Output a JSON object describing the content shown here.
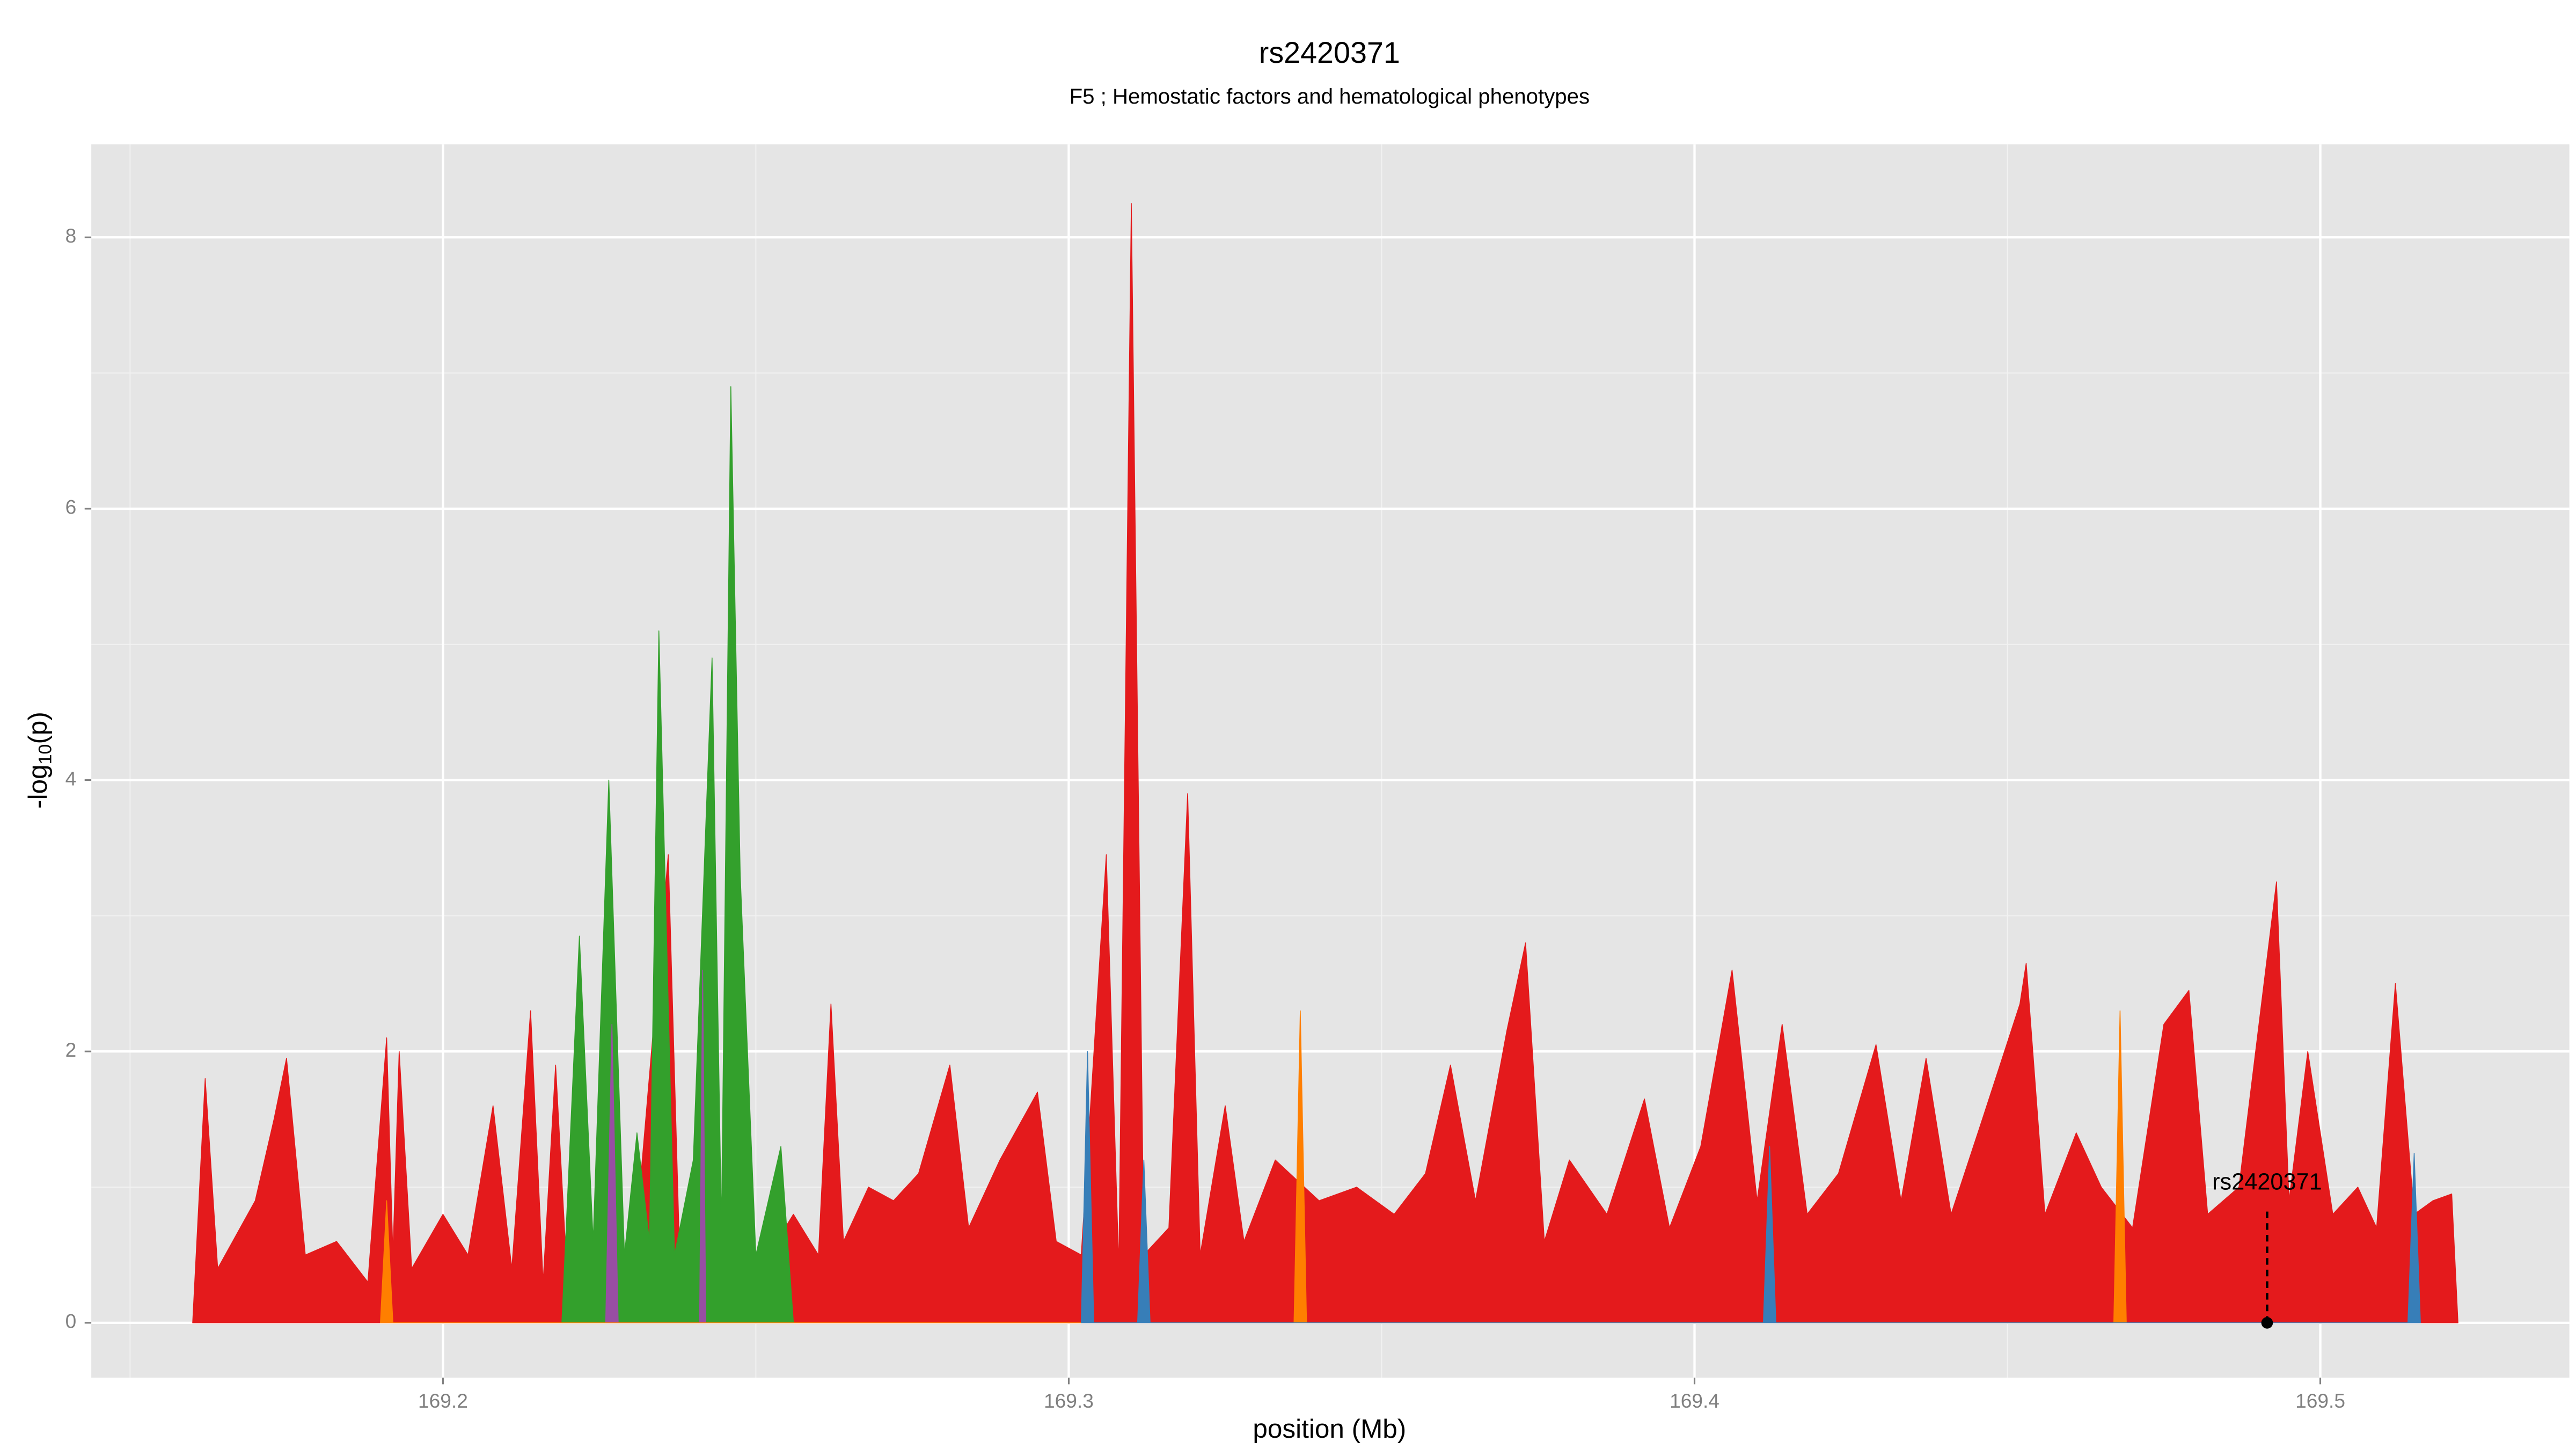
{
  "chart_data": {
    "type": "area",
    "title": "rs2420371",
    "subtitle": "F5 ; Hemostatic factors and hematological phenotypes",
    "xlabel": "position (Mb)",
    "ylabel_parts": [
      "-log",
      "10",
      "(p)"
    ],
    "xlim": [
      169.1438,
      169.5398
    ],
    "ylim": [
      -0.404,
      8.685
    ],
    "xticks": [
      169.2,
      169.3,
      169.4,
      169.5
    ],
    "yticks": [
      0,
      2,
      4,
      6,
      8
    ],
    "xminor": [
      169.15,
      169.25,
      169.35,
      169.45
    ],
    "yminor": [
      1,
      3,
      5,
      7
    ],
    "grid": true,
    "series": [
      {
        "color": "#e41a1c",
        "x": [
          169.16,
          169.162,
          169.164,
          169.17,
          169.173,
          169.175,
          169.178,
          169.183,
          169.188,
          169.191,
          169.192,
          169.193,
          169.195,
          169.2,
          169.204,
          169.208,
          169.211,
          169.214,
          169.216,
          169.218,
          169.22,
          169.226,
          169.23,
          169.236,
          169.238,
          169.245,
          169.252,
          169.256,
          169.26,
          169.262,
          169.264,
          169.268,
          169.272,
          169.276,
          169.281,
          169.284,
          169.289,
          169.295,
          169.298,
          169.302,
          169.306,
          169.308,
          169.31,
          169.312,
          169.316,
          169.319,
          169.321,
          169.325,
          169.328,
          169.333,
          169.34,
          169.346,
          169.352,
          169.357,
          169.361,
          169.365,
          169.37,
          169.373,
          169.376,
          169.38,
          169.386,
          169.392,
          169.396,
          169.401,
          169.406,
          169.41,
          169.414,
          169.418,
          169.423,
          169.429,
          169.433,
          169.437,
          169.441,
          169.446,
          169.452,
          169.453,
          169.456,
          169.461,
          169.465,
          169.47,
          169.475,
          169.479,
          169.482,
          169.487,
          169.493,
          169.495,
          169.498,
          169.502,
          169.506,
          169.509,
          169.512,
          169.515,
          169.518,
          169.521,
          169.522
        ],
        "values": [
          0,
          1.8,
          0.4,
          0.9,
          1.5,
          1.95,
          0.5,
          0.6,
          0.3,
          2.1,
          0.5,
          2.0,
          0.4,
          0.8,
          0.5,
          1.6,
          0.4,
          2.3,
          0.3,
          1.9,
          0.2,
          0.3,
          0.2,
          3.45,
          0.2,
          0.3,
          0.5,
          0.8,
          0.5,
          2.35,
          0.6,
          1.0,
          0.9,
          1.1,
          1.9,
          0.7,
          1.2,
          1.7,
          0.6,
          0.5,
          3.45,
          0.4,
          8.25,
          0.5,
          0.7,
          3.9,
          0.5,
          1.6,
          0.6,
          1.2,
          0.9,
          1.0,
          0.8,
          1.1,
          1.9,
          0.9,
          2.15,
          2.8,
          0.6,
          1.2,
          0.8,
          1.65,
          0.7,
          1.3,
          2.6,
          0.9,
          2.2,
          0.8,
          1.1,
          2.05,
          0.9,
          1.95,
          0.8,
          1.5,
          2.35,
          2.65,
          0.8,
          1.4,
          1.0,
          0.7,
          2.2,
          2.45,
          0.8,
          1.0,
          3.25,
          0.9,
          2.0,
          0.8,
          1.0,
          0.7,
          2.5,
          0.8,
          0.9,
          0.95,
          0
        ]
      },
      {
        "color": "#33a02c",
        "x": [
          169.219,
          169.2218,
          169.224,
          169.2265,
          169.229,
          169.231,
          169.233,
          169.2345,
          169.237,
          169.24,
          169.243,
          169.2445,
          169.246,
          169.2475,
          169.25,
          169.254,
          169.256
        ],
        "values": [
          0,
          2.85,
          0.6,
          4.0,
          0.5,
          1.4,
          0.6,
          5.1,
          0.5,
          1.2,
          4.9,
          0.7,
          6.9,
          3.3,
          0.5,
          1.3,
          0
        ]
      },
      {
        "color": "#984ea3",
        "x": [
          169.226,
          169.227,
          169.228,
          169.241,
          169.2415,
          169.242
        ],
        "values": [
          0,
          2.2,
          0,
          0,
          2.6,
          0
        ]
      },
      {
        "color": "#ff7f00",
        "x": [
          169.19,
          169.191,
          169.192,
          169.336,
          169.337,
          169.338,
          169.467,
          169.468,
          169.469
        ],
        "values": [
          0,
          0.9,
          0,
          0,
          2.3,
          0,
          0,
          2.3,
          0
        ]
      },
      {
        "color": "#377eb8",
        "x": [
          169.302,
          169.303,
          169.304,
          169.311,
          169.312,
          169.313,
          169.411,
          169.412,
          169.413,
          169.514,
          169.515,
          169.516
        ],
        "values": [
          0,
          2.0,
          0,
          0,
          1.2,
          0,
          0,
          1.3,
          0,
          0,
          1.25,
          0
        ]
      }
    ],
    "annotation": {
      "label": "rs2420371",
      "x": 169.4915,
      "y": 0
    }
  }
}
